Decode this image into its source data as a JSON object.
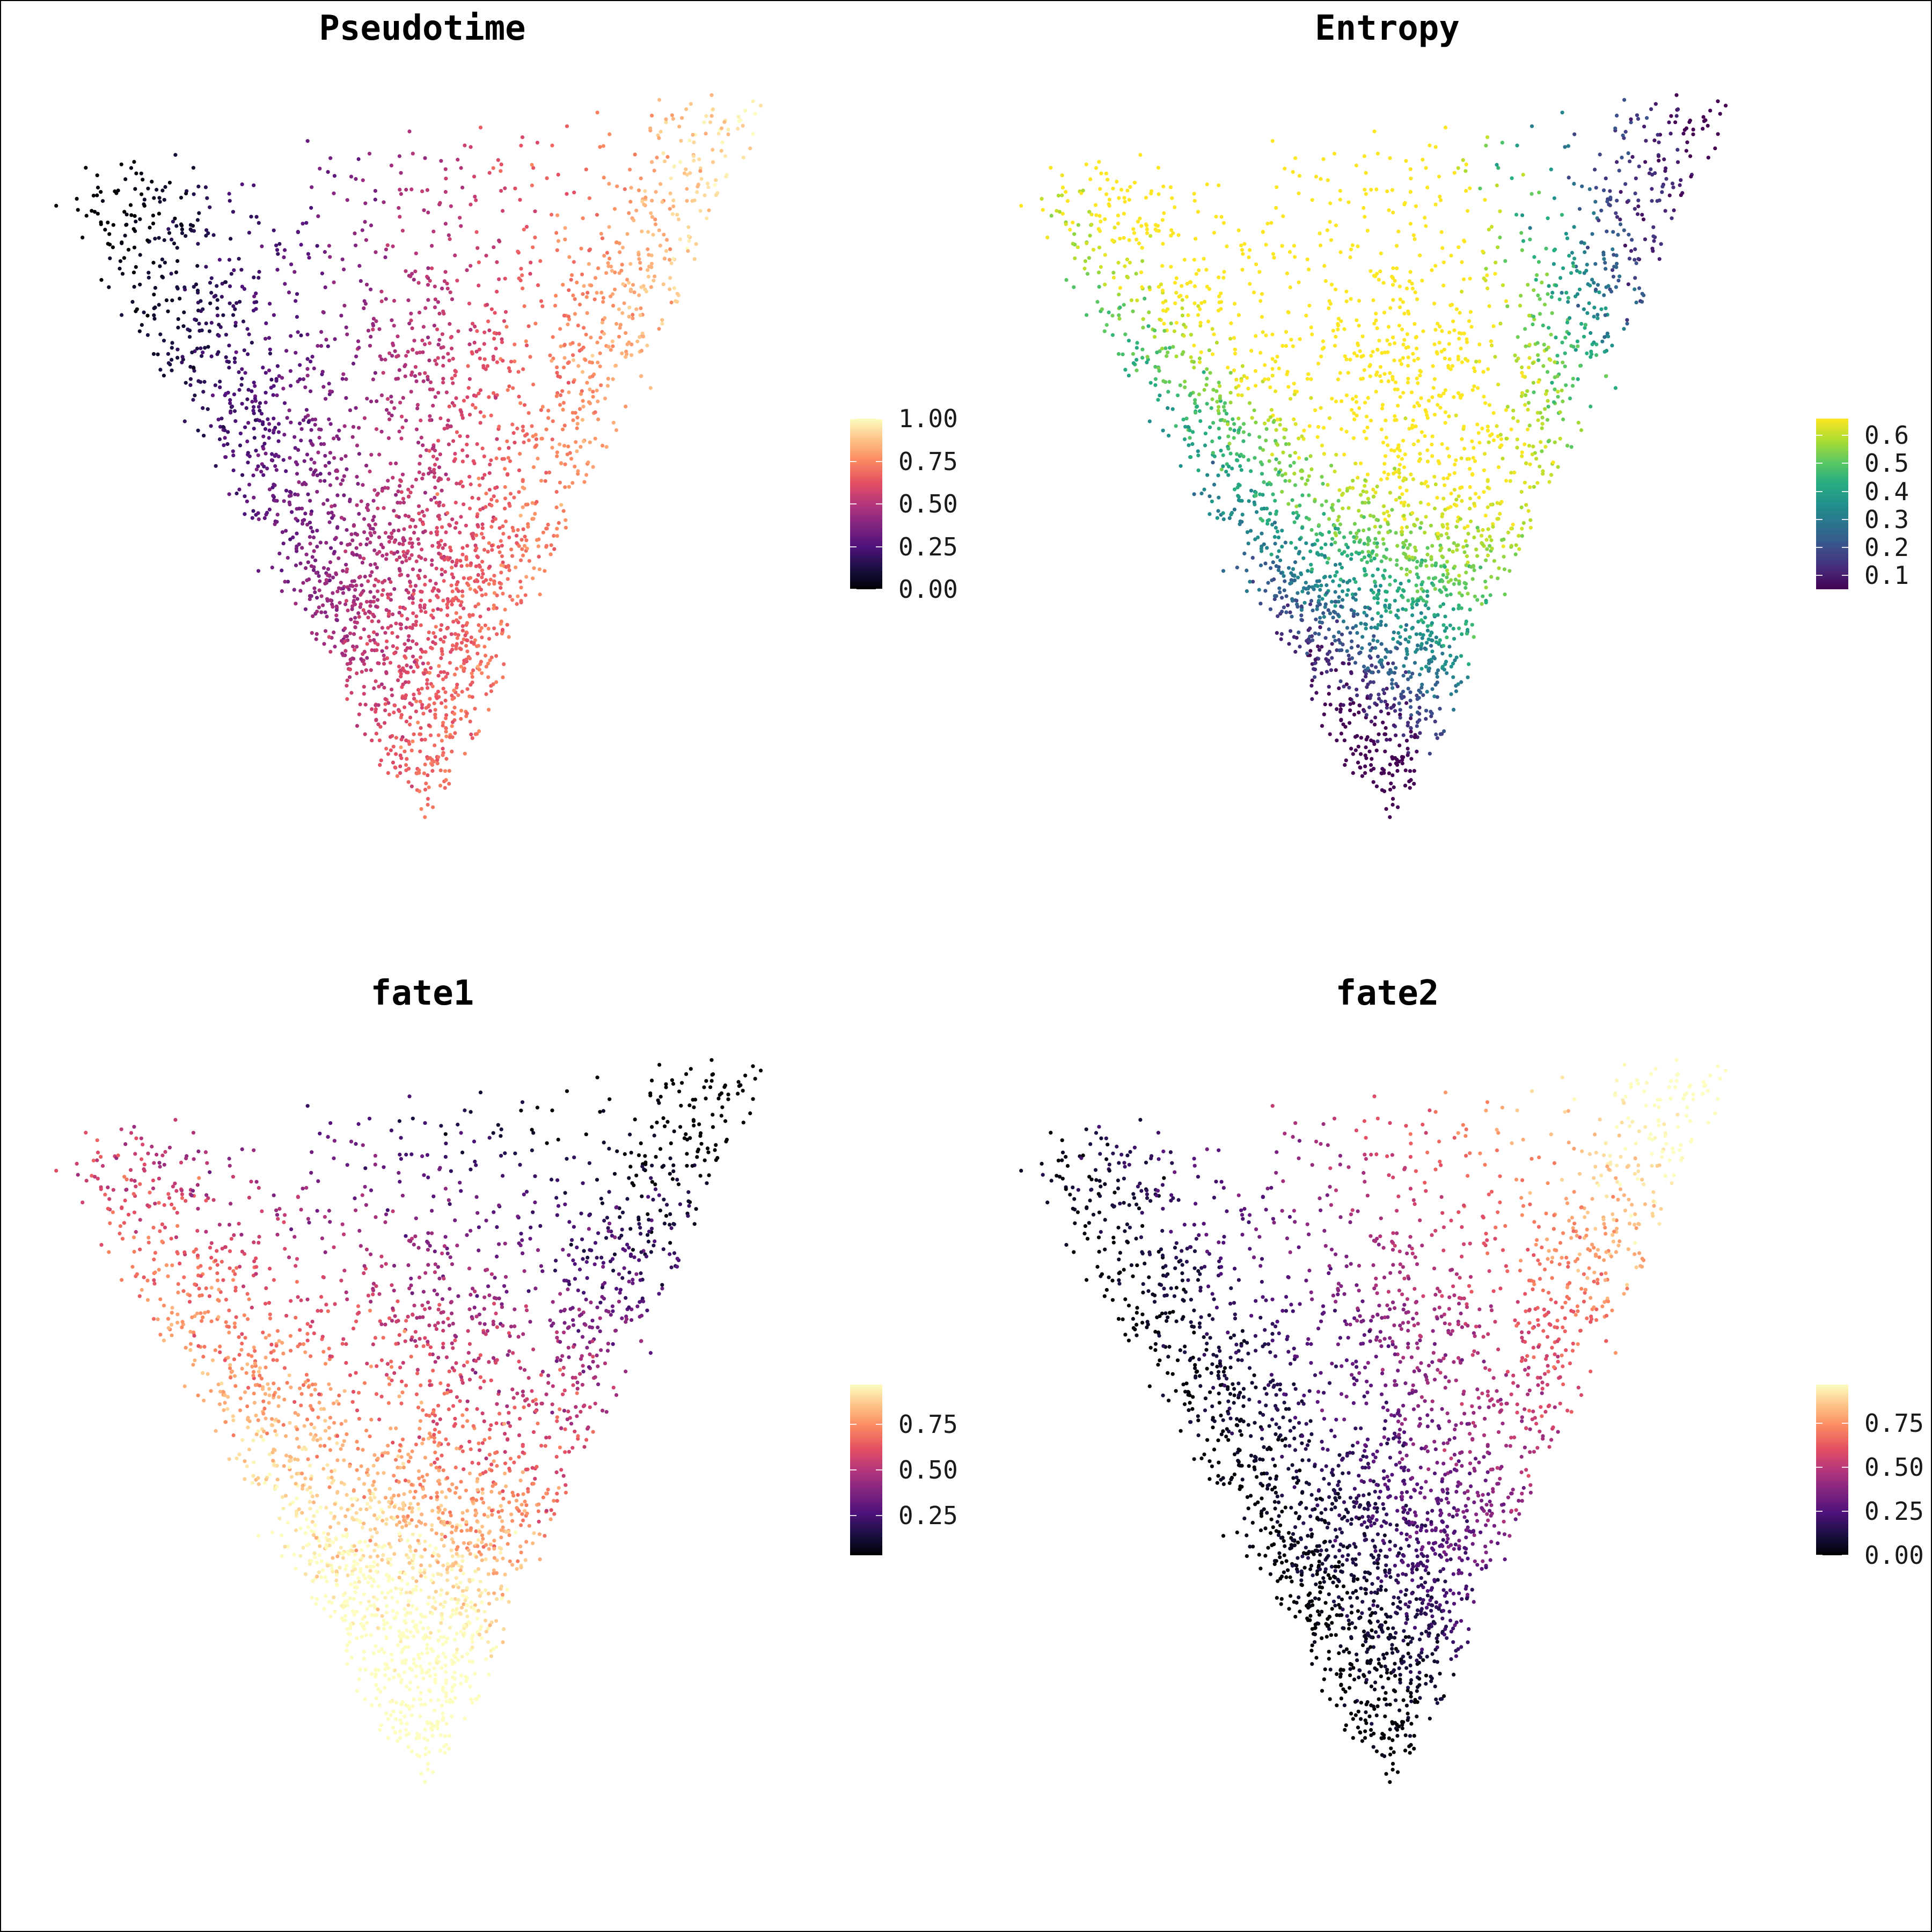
{
  "chart_data": [
    {
      "type": "scatter",
      "title": "Pseudotime",
      "variable": "pseudotime",
      "palette": "magma",
      "legend": {
        "min": 0,
        "max": 1,
        "ticks": [
          0.0,
          0.25,
          0.5,
          0.75,
          1.0
        ],
        "tick_labels": [
          "0.00",
          "0.25",
          "0.50",
          "0.75",
          "1.00"
        ],
        "placement": "right"
      },
      "axes": "none",
      "n_points_approx": 3000
    },
    {
      "type": "scatter",
      "title": "Entropy",
      "variable": "entropy",
      "palette": "viridis",
      "legend": {
        "min": 0.05,
        "max": 0.66,
        "ticks": [
          0.1,
          0.2,
          0.3,
          0.4,
          0.5,
          0.6
        ],
        "tick_labels": [
          "0.1",
          "0.2",
          "0.3",
          "0.4",
          "0.5",
          "0.6"
        ],
        "placement": "right"
      },
      "axes": "none",
      "n_points_approx": 3000
    },
    {
      "type": "scatter",
      "title": "fate1",
      "variable": "fate1",
      "palette": "magma",
      "legend": {
        "min": 0.03,
        "max": 0.97,
        "ticks": [
          0.25,
          0.5,
          0.75
        ],
        "tick_labels": [
          "0.25",
          "0.50",
          "0.75"
        ],
        "placement": "right"
      },
      "axes": "none",
      "n_points_approx": 3000
    },
    {
      "type": "scatter",
      "title": "fate2",
      "variable": "fate2",
      "palette": "magma",
      "legend": {
        "min": 0.0,
        "max": 0.97,
        "ticks": [
          0.0,
          0.25,
          0.5,
          0.75
        ],
        "tick_labels": [
          "0.00",
          "0.25",
          "0.50",
          "0.75"
        ],
        "placement": "right"
      },
      "axes": "none",
      "n_points_approx": 3000
    }
  ]
}
